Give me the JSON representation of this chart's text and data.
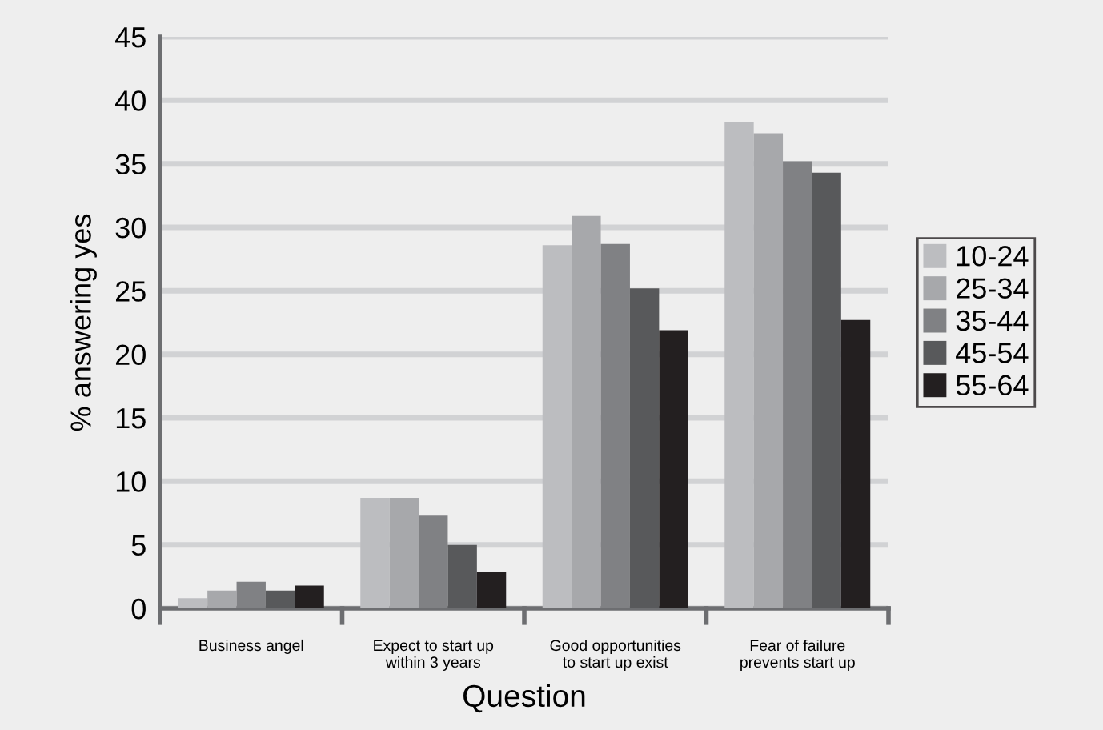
{
  "chart_data": {
    "type": "bar",
    "xlabel": "Question",
    "ylabel": "% answering yes",
    "categories": [
      "Business angel",
      "Expect to start up\nwithin 3 years",
      "Good opportunities\nto start up exist",
      "Fear of failure\nprevents start up"
    ],
    "series": [
      {
        "name": "10-24",
        "color": "#bcbdc0",
        "values": [
          0.8,
          8.7,
          28.6,
          38.3
        ]
      },
      {
        "name": "25-34",
        "color": "#a7a8ab",
        "values": [
          1.4,
          8.7,
          30.9,
          37.4
        ]
      },
      {
        "name": "35-44",
        "color": "#808184",
        "values": [
          2.1,
          7.3,
          28.7,
          35.2
        ]
      },
      {
        "name": "45-54",
        "color": "#58595b",
        "values": [
          1.4,
          5.0,
          25.2,
          34.3
        ]
      },
      {
        "name": "55-64",
        "color": "#231f20",
        "values": [
          1.8,
          2.9,
          21.9,
          22.7
        ]
      }
    ],
    "ylim": [
      0,
      45
    ],
    "yticks": [
      0,
      5,
      10,
      15,
      20,
      25,
      30,
      35,
      40,
      45
    ],
    "grid": "y",
    "legend": "right"
  }
}
